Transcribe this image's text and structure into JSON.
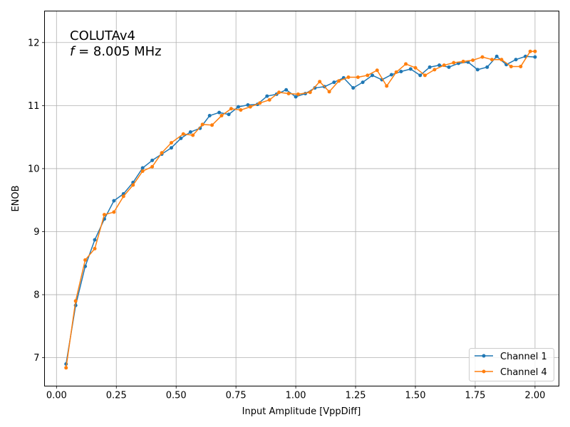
{
  "chart_data": {
    "type": "line",
    "title_lines": [
      "COLUTAv4",
      "f = 8.005 MHz"
    ],
    "title_italic_prefix": "f",
    "title_line2_rest": " = 8.005 MHz",
    "xlabel": "Input Amplitude [VppDiff]",
    "ylabel": "ENOB",
    "xlim": [
      -0.05,
      2.1
    ],
    "ylim": [
      6.55,
      12.5
    ],
    "xticks": [
      0.0,
      0.25,
      0.5,
      0.75,
      1.0,
      1.25,
      1.5,
      1.75,
      2.0
    ],
    "xtick_labels": [
      "0.00",
      "0.25",
      "0.50",
      "0.75",
      "1.00",
      "1.25",
      "1.50",
      "1.75",
      "2.00"
    ],
    "yticks": [
      7,
      8,
      9,
      10,
      11,
      12
    ],
    "ytick_labels": [
      "7",
      "8",
      "9",
      "10",
      "11",
      "12"
    ],
    "grid": true,
    "legend_position": "lower-right",
    "series": [
      {
        "name": "Channel 1",
        "color": "#1f77b4",
        "x": [
          0.04,
          0.08,
          0.12,
          0.16,
          0.2,
          0.24,
          0.28,
          0.32,
          0.36,
          0.4,
          0.44,
          0.48,
          0.52,
          0.56,
          0.6,
          0.64,
          0.68,
          0.72,
          0.76,
          0.8,
          0.84,
          0.88,
          0.92,
          0.96,
          1.0,
          1.04,
          1.08,
          1.12,
          1.16,
          1.2,
          1.24,
          1.28,
          1.32,
          1.36,
          1.4,
          1.44,
          1.48,
          1.52,
          1.56,
          1.6,
          1.64,
          1.68,
          1.72,
          1.76,
          1.8,
          1.84,
          1.88,
          1.92,
          1.96,
          2.0
        ],
        "y": [
          6.9,
          7.83,
          8.45,
          8.87,
          9.2,
          9.49,
          9.6,
          9.78,
          10.01,
          10.13,
          10.23,
          10.33,
          10.48,
          10.58,
          10.64,
          10.84,
          10.89,
          10.86,
          10.98,
          11.01,
          11.02,
          11.15,
          11.18,
          11.25,
          11.14,
          11.19,
          11.28,
          11.3,
          11.37,
          11.44,
          11.28,
          11.37,
          11.48,
          11.41,
          11.49,
          11.54,
          11.58,
          11.48,
          11.61,
          11.64,
          11.61,
          11.67,
          11.69,
          11.57,
          11.61,
          11.78,
          11.65,
          11.73,
          11.78,
          11.77
        ]
      },
      {
        "name": "Channel 4",
        "color": "#ff7f0e",
        "x": [
          0.04,
          0.08,
          0.12,
          0.16,
          0.2,
          0.24,
          0.28,
          0.32,
          0.36,
          0.4,
          0.44,
          0.48,
          0.53,
          0.57,
          0.61,
          0.65,
          0.69,
          0.73,
          0.77,
          0.81,
          0.85,
          0.89,
          0.93,
          0.97,
          1.01,
          1.06,
          1.1,
          1.14,
          1.18,
          1.22,
          1.26,
          1.3,
          1.34,
          1.38,
          1.42,
          1.46,
          1.5,
          1.54,
          1.58,
          1.62,
          1.66,
          1.7,
          1.74,
          1.78,
          1.82,
          1.86,
          1.9,
          1.94,
          1.98,
          2.0
        ],
        "y": [
          6.84,
          7.9,
          8.55,
          8.73,
          9.27,
          9.31,
          9.56,
          9.74,
          9.96,
          10.03,
          10.25,
          10.41,
          10.55,
          10.53,
          10.7,
          10.69,
          10.84,
          10.95,
          10.93,
          10.98,
          11.04,
          11.09,
          11.21,
          11.19,
          11.18,
          11.21,
          11.38,
          11.22,
          11.39,
          11.45,
          11.45,
          11.48,
          11.56,
          11.31,
          11.53,
          11.66,
          11.6,
          11.48,
          11.57,
          11.64,
          11.68,
          11.7,
          11.72,
          11.77,
          11.73,
          11.73,
          11.62,
          11.62,
          11.86,
          11.86
        ]
      }
    ]
  }
}
